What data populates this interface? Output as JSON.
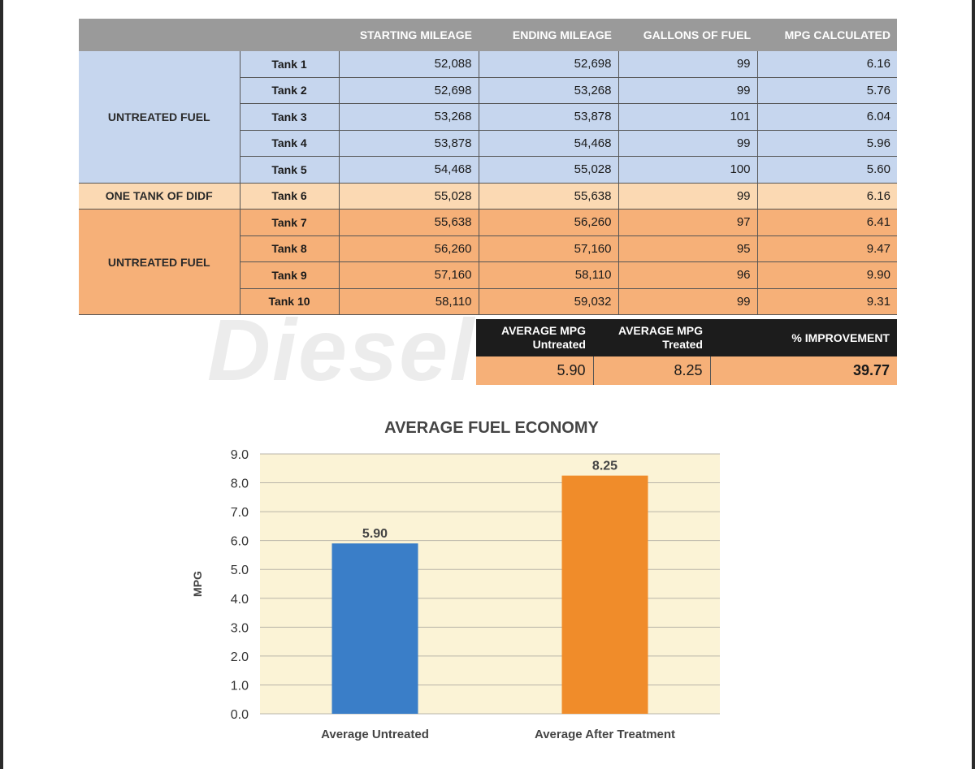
{
  "watermark": "Diesel A",
  "table": {
    "headers": [
      "",
      "",
      "STARTING MILEAGE",
      "ENDING MILEAGE",
      "GALLONS OF FUEL",
      "MPG CALCULATED"
    ],
    "groups": [
      {
        "label": "UNTREATED FUEL",
        "style": "blue",
        "rows": [
          {
            "tank": "Tank 1",
            "start": "52,088",
            "end": "52,698",
            "gallons": "99",
            "mpg": "6.16"
          },
          {
            "tank": "Tank 2",
            "start": "52,698",
            "end": "53,268",
            "gallons": "99",
            "mpg": "5.76"
          },
          {
            "tank": "Tank 3",
            "start": "53,268",
            "end": "53,878",
            "gallons": "101",
            "mpg": "6.04"
          },
          {
            "tank": "Tank 4",
            "start": "53,878",
            "end": "54,468",
            "gallons": "99",
            "mpg": "5.96"
          },
          {
            "tank": "Tank 5",
            "start": "54,468",
            "end": "55,028",
            "gallons": "100",
            "mpg": "5.60"
          }
        ]
      },
      {
        "label": "ONE TANK OF DIDF",
        "style": "peach",
        "rows": [
          {
            "tank": "Tank 6",
            "start": "55,028",
            "end": "55,638",
            "gallons": "99",
            "mpg": "6.16"
          }
        ]
      },
      {
        "label": "UNTREATED FUEL",
        "style": "orange",
        "rows": [
          {
            "tank": "Tank 7",
            "start": "55,638",
            "end": "56,260",
            "gallons": "97",
            "mpg": "6.41"
          },
          {
            "tank": "Tank 8",
            "start": "56,260",
            "end": "57,160",
            "gallons": "95",
            "mpg": "9.47"
          },
          {
            "tank": "Tank 9",
            "start": "57,160",
            "end": "58,110",
            "gallons": "96",
            "mpg": "9.90"
          },
          {
            "tank": "Tank 10",
            "start": "58,110",
            "end": "59,032",
            "gallons": "99",
            "mpg": "9.31"
          }
        ]
      }
    ]
  },
  "summary": {
    "headers": [
      {
        "line1": "AVERAGE MPG",
        "line2": "Untreated"
      },
      {
        "line1": "AVERAGE MPG",
        "line2": "Treated"
      },
      {
        "line1": "% IMPROVEMENT",
        "line2": ""
      }
    ],
    "values": [
      "5.90",
      "8.25",
      "39.77"
    ]
  },
  "colors": {
    "header_gray": "#9a9a9a",
    "blue_band": "#c6d6ee",
    "peach_band": "#fbd9b3",
    "orange_band": "#f6b078",
    "plot_bg": "#fbf3d6",
    "bar_blue": "#3a7ec8",
    "bar_orange": "#f08c2a"
  },
  "chart_data": {
    "type": "bar",
    "title": "AVERAGE FUEL ECONOMY",
    "xlabel": "",
    "ylabel": "MPG",
    "categories": [
      "Average Untreated",
      "Average After Treatment"
    ],
    "values": [
      5.9,
      8.25
    ],
    "value_labels": [
      "5.90",
      "8.25"
    ],
    "bar_colors": [
      "#3a7ec8",
      "#f08c2a"
    ],
    "ylim": [
      0,
      9
    ],
    "yticks": [
      "0.0",
      "1.0",
      "2.0",
      "3.0",
      "4.0",
      "5.0",
      "6.0",
      "7.0",
      "8.0",
      "9.0"
    ],
    "grid": true,
    "legend": "none"
  }
}
